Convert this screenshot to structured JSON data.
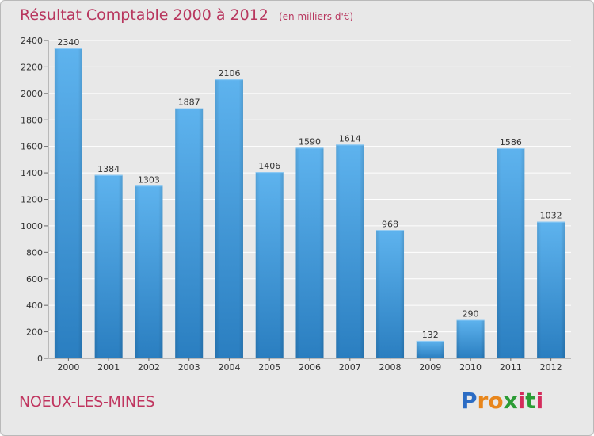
{
  "chart_data": {
    "type": "bar",
    "title": "Résultat Comptable 2000 à 2012",
    "subtitle": "(en milliers d'€)",
    "categories": [
      "2000",
      "2001",
      "2002",
      "2003",
      "2004",
      "2005",
      "2006",
      "2007",
      "2008",
      "2009",
      "2010",
      "2011",
      "2012"
    ],
    "values": [
      2340,
      1384,
      1303,
      1887,
      2106,
      1406,
      1590,
      1614,
      968,
      132,
      290,
      1586,
      1032
    ],
    "ylim": [
      0,
      2400
    ],
    "yticks": [
      0,
      200,
      400,
      600,
      800,
      1000,
      1200,
      1400,
      1600,
      1800,
      2000,
      2200,
      2400
    ],
    "xlabel": "",
    "ylabel": "",
    "grid": true,
    "bar_color": "#4a9fdc"
  },
  "commune": "NOEUX-LES-MINES",
  "logo": {
    "letters": [
      "P",
      "r",
      "o",
      "x",
      "i",
      "t",
      "i"
    ],
    "colors": [
      "#2b6cc4",
      "#e8861c",
      "#e8861c",
      "#2b9c35",
      "#d42c5c",
      "#2b9c35",
      "#d42c5c"
    ]
  }
}
